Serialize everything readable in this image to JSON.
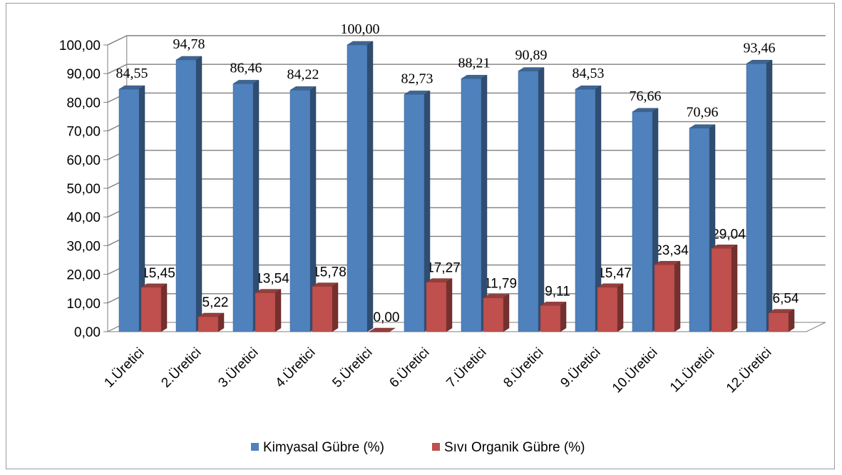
{
  "chart_data": {
    "type": "bar",
    "title": "",
    "xlabel": "",
    "ylabel": "",
    "ylim": [
      0,
      100
    ],
    "ytick_step": 10,
    "y_tick_labels": [
      "0,00",
      "10,00",
      "20,00",
      "30,00",
      "40,00",
      "50,00",
      "60,00",
      "70,00",
      "80,00",
      "90,00",
      "100,00"
    ],
    "categories": [
      "1.Üretici",
      "2.Üretici",
      "3.Üretici",
      "4.Üretici",
      "5.Üretici",
      "6.Üretici",
      "7.Üretici",
      "8.Üretici",
      "9.Üretici",
      "10.Üretici",
      "11.Üretici",
      "12.Üretici"
    ],
    "series": [
      {
        "name": "Kimyasal Gübre (%)",
        "color": "#4f81bd",
        "values": [
          84.55,
          94.78,
          86.46,
          84.22,
          100.0,
          82.73,
          88.21,
          90.89,
          84.53,
          76.66,
          70.96,
          93.46
        ],
        "labels": [
          "84,55",
          "94,78",
          "86,46",
          "84,22",
          "100,00",
          "82,73",
          "88,21",
          "90,89",
          "84,53",
          "76,66",
          "70,96",
          "93,46"
        ]
      },
      {
        "name": "Sıvı Organik Gübre (%)",
        "color": "#c0504d",
        "values": [
          15.45,
          5.22,
          13.54,
          15.78,
          0.0,
          17.27,
          11.79,
          9.11,
          15.47,
          23.34,
          29.04,
          6.54
        ],
        "labels": [
          "15,45",
          "5,22",
          "13,54",
          "15,78",
          "0,00",
          "17,27",
          "11,79",
          "9,11",
          "15,47",
          "23,34",
          "29,04",
          "6,54"
        ]
      }
    ],
    "gridlines": true,
    "legend_position": "bottom",
    "style": "3d-clustered-column"
  }
}
